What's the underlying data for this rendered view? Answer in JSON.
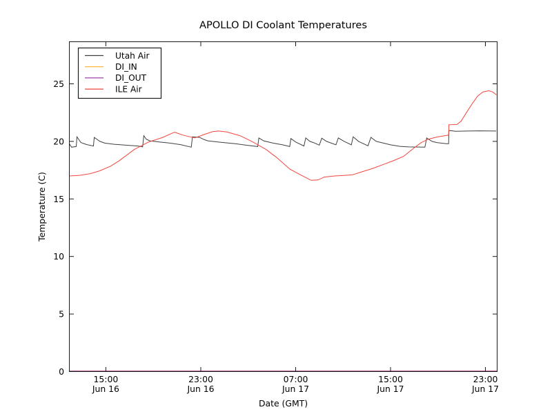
{
  "window": {
    "background": "#ffffff"
  },
  "chart_data": {
    "type": "line",
    "title": "APOLLO DI Coolant Temperatures",
    "xlabel": "Date (GMT)",
    "ylabel": "Temperature (C)",
    "x_unit": "hours since Jun 16 00:00 GMT",
    "xlim": [
      11.92,
      47.99
    ],
    "ylim": [
      0,
      28.66
    ],
    "grid": false,
    "legend_position": "upper left",
    "axis_color": "#1a1a1a",
    "y_ticks": [
      0,
      5,
      10,
      15,
      20,
      25
    ],
    "x_ticks": [
      {
        "value": 15,
        "time": "15:00",
        "date": "Jun 16"
      },
      {
        "value": 23,
        "time": "23:00",
        "date": "Jun 16"
      },
      {
        "value": 31,
        "time": "07:00",
        "date": "Jun 17"
      },
      {
        "value": 39,
        "time": "15:00",
        "date": "Jun 17"
      },
      {
        "value": 47,
        "time": "23:00",
        "date": "Jun 17"
      }
    ],
    "series": [
      {
        "name": "Utah Air",
        "color": "#3f3f3f",
        "points": [
          [
            11.92,
            19.8
          ],
          [
            12.1,
            19.5
          ],
          [
            12.5,
            19.55
          ],
          [
            12.56,
            20.4
          ],
          [
            12.9,
            19.9
          ],
          [
            13.4,
            19.72
          ],
          [
            13.95,
            19.6
          ],
          [
            14.02,
            20.35
          ],
          [
            14.5,
            20.0
          ],
          [
            14.9,
            19.85
          ],
          [
            15.7,
            19.75
          ],
          [
            16.6,
            19.68
          ],
          [
            17.7,
            19.6
          ],
          [
            18.1,
            19.52
          ],
          [
            18.2,
            20.5
          ],
          [
            18.4,
            20.2
          ],
          [
            18.7,
            20.05
          ],
          [
            19.5,
            19.95
          ],
          [
            20.4,
            19.85
          ],
          [
            21.3,
            19.72
          ],
          [
            22.2,
            19.5
          ],
          [
            22.3,
            20.4
          ],
          [
            22.9,
            20.35
          ],
          [
            23.3,
            20.15
          ],
          [
            23.6,
            20.05
          ],
          [
            24.7,
            19.92
          ],
          [
            25.9,
            19.8
          ],
          [
            27.0,
            19.65
          ],
          [
            27.8,
            19.55
          ],
          [
            27.9,
            20.3
          ],
          [
            28.3,
            20.05
          ],
          [
            29.1,
            19.85
          ],
          [
            29.9,
            19.7
          ],
          [
            30.5,
            19.55
          ],
          [
            30.6,
            20.25
          ],
          [
            31.0,
            19.95
          ],
          [
            31.7,
            19.6
          ],
          [
            31.85,
            20.3
          ],
          [
            32.2,
            20.0
          ],
          [
            32.5,
            19.9
          ],
          [
            33.0,
            19.68
          ],
          [
            33.2,
            20.28
          ],
          [
            33.6,
            20.0
          ],
          [
            34.4,
            19.7
          ],
          [
            34.6,
            20.3
          ],
          [
            35.1,
            20.0
          ],
          [
            35.7,
            19.7
          ],
          [
            35.85,
            20.4
          ],
          [
            36.3,
            20.0
          ],
          [
            37.1,
            19.62
          ],
          [
            37.35,
            20.35
          ],
          [
            37.8,
            20.0
          ],
          [
            38.4,
            19.85
          ],
          [
            39.0,
            19.7
          ],
          [
            39.8,
            19.57
          ],
          [
            40.5,
            19.52
          ],
          [
            41.9,
            19.5
          ],
          [
            42.05,
            20.3
          ],
          [
            42.5,
            20.0
          ],
          [
            42.9,
            19.9
          ],
          [
            43.7,
            19.8
          ],
          [
            43.9,
            19.8
          ],
          [
            43.92,
            20.95
          ],
          [
            44.5,
            20.88
          ],
          [
            45.5,
            20.9
          ],
          [
            46.5,
            20.92
          ],
          [
            47.9,
            20.9
          ]
        ]
      },
      {
        "name": "DI_IN",
        "color": "#ffaf24",
        "points": [
          [
            11.92,
            0
          ],
          [
            47.99,
            0
          ]
        ]
      },
      {
        "name": "DI_OUT",
        "color": "#9b3fa5",
        "points": [
          [
            11.92,
            0
          ],
          [
            47.99,
            0
          ]
        ]
      },
      {
        "name": "ILE Air",
        "color": "#f2453d",
        "points": [
          [
            11.92,
            17.0
          ],
          [
            12.8,
            17.05
          ],
          [
            13.7,
            17.2
          ],
          [
            14.5,
            17.45
          ],
          [
            15.4,
            17.85
          ],
          [
            16.1,
            18.3
          ],
          [
            17.4,
            19.3
          ],
          [
            18.6,
            19.95
          ],
          [
            19.8,
            20.35
          ],
          [
            20.6,
            20.72
          ],
          [
            20.8,
            20.8
          ],
          [
            21.5,
            20.55
          ],
          [
            22.1,
            20.4
          ],
          [
            22.5,
            20.3
          ],
          [
            23.3,
            20.6
          ],
          [
            24.0,
            20.85
          ],
          [
            24.5,
            20.9
          ],
          [
            25.2,
            20.82
          ],
          [
            26.3,
            20.5
          ],
          [
            27.3,
            20.0
          ],
          [
            28.5,
            19.3
          ],
          [
            29.4,
            18.6
          ],
          [
            30.5,
            17.6
          ],
          [
            31.4,
            17.1
          ],
          [
            32.3,
            16.62
          ],
          [
            32.9,
            16.65
          ],
          [
            33.4,
            16.9
          ],
          [
            34.3,
            17.0
          ],
          [
            35.2,
            17.05
          ],
          [
            35.8,
            17.1
          ],
          [
            36.4,
            17.3
          ],
          [
            37.5,
            17.65
          ],
          [
            38.4,
            18.0
          ],
          [
            39.3,
            18.35
          ],
          [
            40.1,
            18.7
          ],
          [
            41.0,
            19.45
          ],
          [
            41.6,
            19.9
          ],
          [
            42.2,
            20.2
          ],
          [
            43.0,
            20.4
          ],
          [
            43.9,
            20.55
          ],
          [
            43.92,
            21.45
          ],
          [
            44.6,
            21.47
          ],
          [
            44.95,
            21.75
          ],
          [
            45.4,
            22.5
          ],
          [
            45.9,
            23.3
          ],
          [
            46.35,
            23.95
          ],
          [
            46.8,
            24.3
          ],
          [
            47.3,
            24.4
          ],
          [
            47.6,
            24.3
          ],
          [
            47.93,
            24.05
          ]
        ]
      }
    ]
  }
}
